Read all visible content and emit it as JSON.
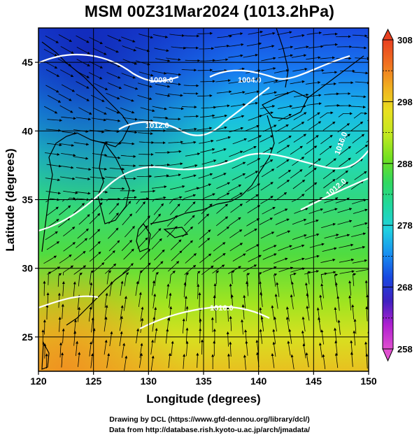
{
  "header": {
    "title": "MSM 00Z31Mar2024 (1013.2hPa)"
  },
  "map": {
    "lon_range": [
      120,
      150
    ],
    "lat_range": [
      22.5,
      47.5
    ],
    "x_ticks": [
      "120",
      "125",
      "130",
      "135",
      "140",
      "145",
      "150"
    ],
    "y_ticks": [
      "25",
      "30",
      "35",
      "40",
      "45"
    ],
    "x_label": "Longitude (degrees)",
    "y_label": "Latitude  (degrees)",
    "contours": [
      {
        "label": "1008.0"
      },
      {
        "label": "1004.0"
      },
      {
        "label": "1012.0"
      },
      {
        "label": "1012.0"
      },
      {
        "label": "1016.0"
      },
      {
        "label": "1016.0"
      }
    ],
    "colorbar": {
      "min": 258,
      "max": 308,
      "ticks": [
        "308",
        "298",
        "288",
        "278",
        "268",
        "258"
      ],
      "colors": [
        "#e050d0",
        "#b020d0",
        "#4020c0",
        "#1848e0",
        "#1890f0",
        "#20d0e0",
        "#20d8a0",
        "#30d860",
        "#70e020",
        "#c0e820",
        "#e8e020",
        "#f0b020",
        "#f07020",
        "#e84020"
      ]
    }
  },
  "footer": {
    "credit_line1": "Drawing by DCL (https://www.gfd-dennou.org/library/dcl/)",
    "credit_line2": "Data from http://database.rish.kyoto-u.ac.jp/arch/jmadata/"
  }
}
